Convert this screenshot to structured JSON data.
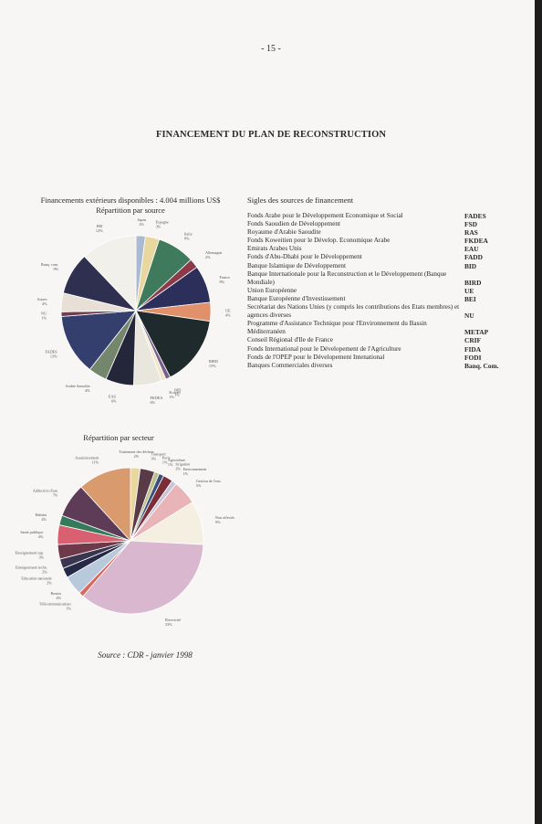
{
  "page_number": "- 15 -",
  "title": "FINANCEMENT DU PLAN DE RECONSTRUCTION",
  "chart1": {
    "caption_line1": "Financements extérieurs disponibles : 4.004 millions US$",
    "caption_line2": "Répartition par source"
  },
  "chart2": {
    "caption": "Répartition par secteur"
  },
  "legend": {
    "title": "Sigles des sources de financement",
    "items": [
      {
        "name": "Fonds Arabe pour le Développement Economique et Social",
        "code": "FADES"
      },
      {
        "name": "Fonds Saoudien de Développement",
        "code": "FSD"
      },
      {
        "name": "Royaume d'Arabie Saoudite",
        "code": "RAS"
      },
      {
        "name": "Fonds Koweitien pour le Dévelop. Economique Arabe",
        "code": "FKDEA"
      },
      {
        "name": "Emirats Arabes Unis",
        "code": "EAU"
      },
      {
        "name": "Fonds d'Abu-Dhabi pour le Développement",
        "code": "FADD"
      },
      {
        "name": "Banque Islamique de Développement",
        "code": "BID"
      },
      {
        "name": "Banque Internationale pour la Reconstruction et le Développement (Banque Mondiale)",
        "code": "BIRD"
      },
      {
        "name": "Union Européenne",
        "code": "UE"
      },
      {
        "name": "Banque Européenne d'Investissement",
        "code": "BEI"
      },
      {
        "name": "Secrétariat des Nations Unies (y compris les contributions des Etats membres) et agences diverses",
        "code": "NU"
      },
      {
        "name": "Programme d'Assistance Technique pour l'Environnement du Bassin Méditerranéen",
        "code": "METAP"
      },
      {
        "name": "Conseil Régional d'Ile de France",
        "code": "CRIF"
      },
      {
        "name": "Fonds International pour le Dévelopement de l'Agriculture",
        "code": "FIDA"
      },
      {
        "name": "Fonds de l'OPEP pour le Dévelopement Intenational",
        "code": "FODI"
      },
      {
        "name": "Banques Commerciales diverses",
        "code": "Banq. Com."
      }
    ]
  },
  "source": "Source : CDR - janvier 1998",
  "chart_data": [
    {
      "type": "pie",
      "title": "Répartition par source",
      "slices": [
        {
          "label": "Japon",
          "value": 2,
          "color": "#a9bad2"
        },
        {
          "label": "Espagne",
          "value": 3,
          "color": "#e8d8a0"
        },
        {
          "label": "Italie",
          "value": 8,
          "color": "#3f7a5c"
        },
        {
          "label": "Allemagne",
          "value": 2,
          "color": "#8c3a4a"
        },
        {
          "label": "France",
          "value": 8,
          "color": "#2b2f5a"
        },
        {
          "label": "UE",
          "value": 4,
          "color": "#e0906a"
        },
        {
          "label": "BIRD",
          "value": 15,
          "color": "#1f2a2c"
        },
        {
          "label": "BID",
          "value": 1,
          "color": "#7a5f8a"
        },
        {
          "label": "Koweït",
          "value": 1,
          "color": "#f0e6cc"
        },
        {
          "label": "FKDEA",
          "value": 6,
          "color": "#e9e6de"
        },
        {
          "label": "EAU",
          "value": 6,
          "color": "#24263a"
        },
        {
          "label": "Arabie Saoudite",
          "value": 4,
          "color": "#74876c"
        },
        {
          "label": "FADES",
          "value": 13,
          "color": "#343f6e"
        },
        {
          "label": "NU",
          "value": 1,
          "color": "#6e3f4e"
        },
        {
          "label": "Autres",
          "value": 4,
          "color": "#e8e0d6"
        },
        {
          "label": "Banq. com.",
          "value": 9,
          "color": "#2f3050"
        },
        {
          "label": "BEI",
          "value": 12,
          "color": "#f2f0ea"
        }
      ]
    },
    {
      "type": "pie",
      "title": "Répartition par secteur",
      "slices": [
        {
          "label": "Traitement des déchets",
          "value": 2,
          "color": "#e8d8a0"
        },
        {
          "label": "Transport",
          "value": 3,
          "color": "#5a3a46"
        },
        {
          "label": "Ports",
          "value": 1,
          "color": "#b9c08a"
        },
        {
          "label": "Agriculture",
          "value": 1,
          "color": "#3b4f7a"
        },
        {
          "label": "Irrigation",
          "value": 2,
          "color": "#7a2f38"
        },
        {
          "label": "Environnement",
          "value": 1,
          "color": "#c8c4d8"
        },
        {
          "label": "Gestion de l'eau",
          "value": 5,
          "color": "#e9b4b8"
        },
        {
          "label": "Non affectés",
          "value": 9,
          "color": "#f4efe0"
        },
        {
          "label": "Electricité",
          "value": 33,
          "color": "#d9b8cf"
        },
        {
          "label": "Télécommunications",
          "value": 1,
          "color": "#d66a60"
        },
        {
          "label": "Routes",
          "value": 4,
          "color": "#b8c9dc"
        },
        {
          "label": "Education nationale",
          "value": 2,
          "color": "#262a48"
        },
        {
          "label": "Enseignement techn.",
          "value": 2,
          "color": "#3a3650"
        },
        {
          "label": "Enseignement sup.",
          "value": 3,
          "color": "#6e3a4a"
        },
        {
          "label": "Santé publique",
          "value": 4,
          "color": "#d86070"
        },
        {
          "label": "Habitat",
          "value": 2,
          "color": "#357a5a"
        },
        {
          "label": "Adduction d'eau",
          "value": 7,
          "color": "#5e3b56"
        },
        {
          "label": "Assainissement",
          "value": 11,
          "color": "#d99a6e"
        }
      ]
    }
  ]
}
